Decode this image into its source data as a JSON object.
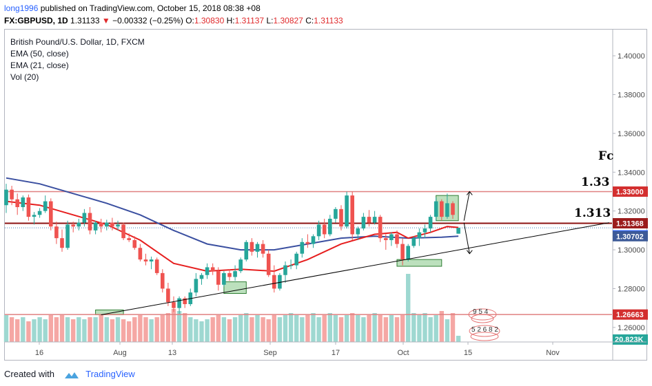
{
  "header": {
    "author": "long1996",
    "published": "published on TradingView.com, October 15, 2018 08:38 +08",
    "symbol": "FX:GBPUSD, 1D",
    "last": "1.31133",
    "change_arrow": "▼",
    "change": "−0.00332 (−0.25%)",
    "o_label": "O:",
    "o": "1.30830",
    "h_label": "H:",
    "h": "1.31137",
    "l_label": "L:",
    "l": "1.30827",
    "c_label": "C:",
    "c": "1.31133"
  },
  "legend": {
    "title": "British Pound/U.S. Dollar, 1D, FXCM",
    "ema50": "EMA (50, close)",
    "ema21": "EMA (21, close)",
    "vol": "Vol (20)"
  },
  "annotations": {
    "level_133": "1.33",
    "level_1313": "1.313",
    "fc": "Fc",
    "event_top": "9 5 4",
    "event_bottom": "5 2 6 8 2"
  },
  "footer": {
    "created": "Created with",
    "brand": "TradingView"
  },
  "colors": {
    "up": "#26a69a",
    "down": "#ef5350",
    "up_vol": "#9ed8d1",
    "down_vol": "#f5a7a4",
    "ema50": "#3a4fa0",
    "ema21": "#e61e1e",
    "hline_red": "#e08080",
    "hline_dark": "#8b1010",
    "zone_fill": "#a5d6a7",
    "zone_stroke": "#2e7d32",
    "price_tag_blue": "#3d5a98",
    "price_tag_red": "#d32f2f",
    "vol_tag": "#26a69a",
    "axis_text": "#4a4a4a"
  },
  "chart_data": {
    "type": "candlestick",
    "title": "British Pound/U.S. Dollar, 1D, FXCM",
    "y_axis": {
      "ticks": [
        "1.40000",
        "1.38000",
        "1.36000",
        "1.34000",
        "1.32000",
        "1.30000",
        "1.28000",
        "1.26000"
      ],
      "range": [
        1.2525,
        1.4135
      ],
      "grid": false
    },
    "x_axis": {
      "ticks": [
        "16",
        "Aug",
        "13",
        "Sep",
        "17",
        "Oct",
        "15",
        "Nov"
      ]
    },
    "price_labels": [
      {
        "value": 1.33,
        "text": "1.33000",
        "style": "red"
      },
      {
        "value": 1.31368,
        "text": "1.31368",
        "style": "dark-red"
      },
      {
        "value": 1.31133,
        "text": "1.31133",
        "style": "blue"
      },
      {
        "value": 1.30702,
        "text": "1.30702",
        "style": "navy"
      },
      {
        "value": 1.26663,
        "text": "1.26663",
        "style": "red"
      }
    ],
    "volume_label": "20.823K",
    "horizontal_lines": [
      1.33,
      1.31368,
      1.26663
    ],
    "candles": [
      [
        1.323,
        1.334,
        1.319,
        1.331
      ],
      [
        1.331,
        1.333,
        1.323,
        1.326
      ],
      [
        1.326,
        1.329,
        1.318,
        1.322
      ],
      [
        1.322,
        1.328,
        1.32,
        1.327
      ],
      [
        1.327,
        1.3285,
        1.315,
        1.317
      ],
      [
        1.317,
        1.3195,
        1.313,
        1.318
      ],
      [
        1.318,
        1.3215,
        1.3165,
        1.32
      ],
      [
        1.32,
        1.328,
        1.319,
        1.325
      ],
      [
        1.325,
        1.3265,
        1.31,
        1.312
      ],
      [
        1.312,
        1.3145,
        1.303,
        1.306
      ],
      [
        1.306,
        1.3105,
        1.299,
        1.301
      ],
      [
        1.301,
        1.315,
        1.3,
        1.313
      ],
      [
        1.313,
        1.3145,
        1.309,
        1.312
      ],
      [
        1.312,
        1.316,
        1.31,
        1.314
      ],
      [
        1.314,
        1.321,
        1.312,
        1.319
      ],
      [
        1.319,
        1.322,
        1.308,
        1.31
      ],
      [
        1.31,
        1.315,
        1.308,
        1.314
      ],
      [
        1.314,
        1.316,
        1.309,
        1.312
      ],
      [
        1.312,
        1.3155,
        1.31,
        1.314
      ],
      [
        1.314,
        1.3165,
        1.31,
        1.312
      ],
      [
        1.312,
        1.315,
        1.31,
        1.313
      ],
      [
        1.313,
        1.314,
        1.305,
        1.306
      ],
      [
        1.306,
        1.3085,
        1.304,
        1.305
      ],
      [
        1.305,
        1.307,
        1.3,
        1.301
      ],
      [
        1.301,
        1.303,
        1.294,
        1.295
      ],
      [
        1.295,
        1.298,
        1.292,
        1.294
      ],
      [
        1.294,
        1.2965,
        1.29,
        1.295
      ],
      [
        1.295,
        1.296,
        1.287,
        1.288
      ],
      [
        1.288,
        1.29,
        1.278,
        1.28
      ],
      [
        1.28,
        1.283,
        1.271,
        1.273
      ],
      [
        1.273,
        1.276,
        1.268,
        1.27
      ],
      [
        1.27,
        1.276,
        1.267,
        1.275
      ],
      [
        1.275,
        1.276,
        1.27,
        1.272
      ],
      [
        1.272,
        1.28,
        1.271,
        1.278
      ],
      [
        1.278,
        1.288,
        1.276,
        1.285
      ],
      [
        1.285,
        1.288,
        1.282,
        1.287
      ],
      [
        1.287,
        1.293,
        1.285,
        1.291
      ],
      [
        1.291,
        1.293,
        1.287,
        1.289
      ],
      [
        1.289,
        1.291,
        1.279,
        1.282
      ],
      [
        1.282,
        1.289,
        1.281,
        1.288
      ],
      [
        1.288,
        1.29,
        1.284,
        1.286
      ],
      [
        1.286,
        1.292,
        1.284,
        1.289
      ],
      [
        1.289,
        1.296,
        1.288,
        1.295
      ],
      [
        1.295,
        1.305,
        1.294,
        1.304
      ],
      [
        1.304,
        1.306,
        1.297,
        1.299
      ],
      [
        1.299,
        1.304,
        1.296,
        1.303
      ],
      [
        1.303,
        1.305,
        1.296,
        1.298
      ],
      [
        1.298,
        1.3,
        1.286,
        1.287
      ],
      [
        1.287,
        1.292,
        1.278,
        1.28
      ],
      [
        1.28,
        1.288,
        1.279,
        1.287
      ],
      [
        1.287,
        1.294,
        1.283,
        1.292
      ],
      [
        1.292,
        1.295,
        1.29,
        1.292
      ],
      [
        1.292,
        1.299,
        1.29,
        1.298
      ],
      [
        1.298,
        1.306,
        1.296,
        1.304
      ],
      [
        1.304,
        1.308,
        1.301,
        1.303
      ],
      [
        1.303,
        1.308,
        1.301,
        1.307
      ],
      [
        1.307,
        1.315,
        1.305,
        1.313
      ],
      [
        1.313,
        1.316,
        1.306,
        1.308
      ],
      [
        1.308,
        1.318,
        1.307,
        1.316
      ],
      [
        1.316,
        1.322,
        1.314,
        1.321
      ],
      [
        1.321,
        1.323,
        1.31,
        1.312
      ],
      [
        1.312,
        1.33,
        1.311,
        1.328
      ],
      [
        1.328,
        1.33,
        1.305,
        1.308
      ],
      [
        1.308,
        1.312,
        1.305,
        1.311
      ],
      [
        1.311,
        1.319,
        1.31,
        1.317
      ],
      [
        1.317,
        1.3205,
        1.312,
        1.314
      ],
      [
        1.314,
        1.32,
        1.313,
        1.317
      ],
      [
        1.317,
        1.318,
        1.304,
        1.306
      ],
      [
        1.306,
        1.308,
        1.3,
        1.305
      ],
      [
        1.305,
        1.309,
        1.302,
        1.308
      ],
      [
        1.308,
        1.31,
        1.301,
        1.303
      ],
      [
        1.303,
        1.306,
        1.292,
        1.295
      ],
      [
        1.295,
        1.303,
        1.294,
        1.302
      ],
      [
        1.302,
        1.307,
        1.301,
        1.306
      ],
      [
        1.306,
        1.311,
        1.302,
        1.309
      ],
      [
        1.309,
        1.313,
        1.306,
        1.311
      ],
      [
        1.311,
        1.318,
        1.309,
        1.317
      ],
      [
        1.317,
        1.327,
        1.315,
        1.325
      ],
      [
        1.325,
        1.326,
        1.315,
        1.317
      ],
      [
        1.317,
        1.329,
        1.316,
        1.324
      ],
      [
        1.324,
        1.325,
        1.316,
        1.318
      ],
      [
        1.3083,
        1.31137,
        1.30827,
        1.31133
      ]
    ],
    "volume": [
      13,
      12,
      11,
      12,
      10,
      11,
      12,
      11,
      13,
      12,
      13,
      12,
      11,
      12,
      11,
      12,
      12,
      13,
      12,
      11,
      12,
      11,
      10,
      12,
      13,
      12,
      11,
      12,
      13,
      14,
      16,
      15,
      14,
      12,
      11,
      10,
      11,
      12,
      13,
      12,
      11,
      12,
      13,
      14,
      12,
      13,
      12,
      11,
      13,
      12,
      13,
      14,
      13,
      12,
      13,
      14,
      12,
      13,
      14,
      13,
      12,
      13,
      14,
      13,
      12,
      13,
      14,
      13,
      12,
      13,
      12,
      13,
      33,
      14,
      13,
      14,
      12,
      13,
      15,
      11,
      14,
      3
    ],
    "ema50": [
      [
        0,
        1.337
      ],
      [
        6,
        1.334
      ],
      [
        12,
        1.329
      ],
      [
        18,
        1.324
      ],
      [
        24,
        1.318
      ],
      [
        30,
        1.31
      ],
      [
        36,
        1.303
      ],
      [
        42,
        1.3
      ],
      [
        48,
        1.3
      ],
      [
        54,
        1.303
      ],
      [
        60,
        1.306
      ],
      [
        66,
        1.307
      ],
      [
        72,
        1.306
      ],
      [
        78,
        1.3065
      ],
      [
        81,
        1.307
      ]
    ],
    "ema21": [
      [
        0,
        1.325
      ],
      [
        6,
        1.323
      ],
      [
        12,
        1.318
      ],
      [
        18,
        1.313
      ],
      [
        24,
        1.305
      ],
      [
        30,
        1.293
      ],
      [
        36,
        1.289
      ],
      [
        42,
        1.29
      ],
      [
        48,
        1.289
      ],
      [
        54,
        1.295
      ],
      [
        60,
        1.303
      ],
      [
        66,
        1.308
      ],
      [
        70,
        1.309
      ],
      [
        72,
        1.306
      ],
      [
        76,
        1.309
      ],
      [
        79,
        1.312
      ],
      [
        81,
        1.3115
      ]
    ],
    "trendline": [
      [
        17,
        1.2665
      ],
      [
        108,
        1.314
      ]
    ],
    "zones": [
      {
        "from": 16,
        "to": 21,
        "y0": 1.2665,
        "y1": 1.269
      },
      {
        "from": 39,
        "to": 43,
        "y0": 1.2775,
        "y1": 1.2835
      },
      {
        "from": 70,
        "to": 78,
        "y0": 1.2915,
        "y1": 1.295
      },
      {
        "from": 77,
        "to": 81,
        "y0": 1.315,
        "y1": 1.328
      }
    ],
    "arrows": [
      {
        "from": [
          82,
          1.315
        ],
        "to": [
          83,
          1.33
        ]
      },
      {
        "from": [
          82,
          1.314
        ],
        "to": [
          83,
          1.298
        ]
      }
    ]
  }
}
